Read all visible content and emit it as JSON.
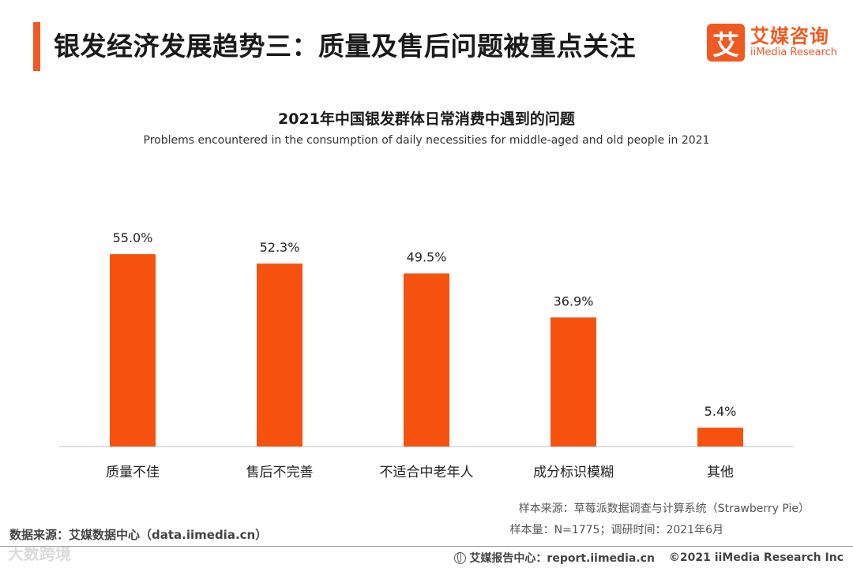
{
  "header": {
    "title": "银发经济发展趋势三：质量及售后问题被重点关注",
    "logo_mark": "艾",
    "logo_cn": "艾媒咨询",
    "logo_en": "iiMedia Research"
  },
  "chart_data": {
    "type": "bar",
    "title": "2021年中国银发群体日常消费中遇到的问题",
    "subtitle": "Problems encountered in the consumption of daily necessities for middle-aged and old people in 2021",
    "categories": [
      "质量不佳",
      "售后不完善",
      "不适合中老年人",
      "成分标识模糊",
      "其他"
    ],
    "values": [
      55.0,
      52.3,
      49.5,
      36.9,
      5.4
    ],
    "value_labels": [
      "55.0%",
      "52.3%",
      "49.5%",
      "36.9%",
      "5.4%"
    ],
    "ylim": [
      0,
      60
    ],
    "xlabel": "",
    "ylabel": "",
    "grid": false,
    "bar_color": "#f5520f"
  },
  "notes": {
    "sample_source": "样本来源：草莓派数据调查与计算系统（Strawberry Pie）",
    "sample_size": "样本量：N=1775；调研时间：2021年6月",
    "data_source": "数据来源：艾媒数据中心（data.iimedia.cn）"
  },
  "footer": {
    "report_center": "艾媒报告中心：report.iimedia.cn",
    "copyright": "©2021  iiMedia Research  Inc"
  },
  "watermark": "大数跨境"
}
